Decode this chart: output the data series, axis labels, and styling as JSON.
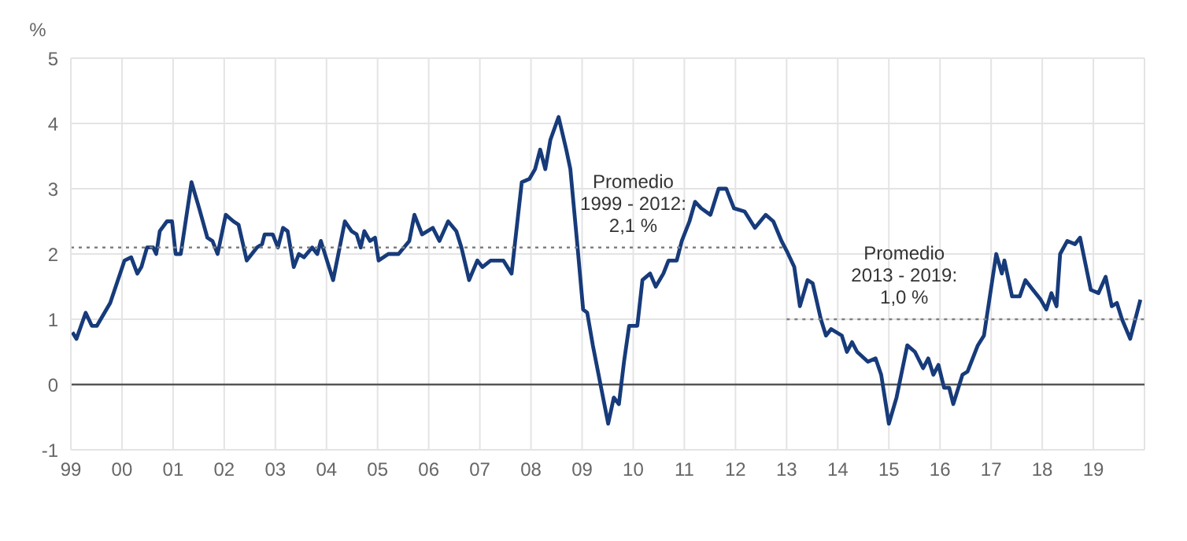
{
  "chart_data": {
    "type": "line",
    "ylabel": "%",
    "xlim": [
      1999,
      2020
    ],
    "xticks": [
      {
        "value": 1999,
        "label": "99"
      },
      {
        "value": 2000,
        "label": "00"
      },
      {
        "value": 2001,
        "label": "01"
      },
      {
        "value": 2002,
        "label": "02"
      },
      {
        "value": 2003,
        "label": "03"
      },
      {
        "value": 2004,
        "label": "04"
      },
      {
        "value": 2005,
        "label": "05"
      },
      {
        "value": 2006,
        "label": "06"
      },
      {
        "value": 2007,
        "label": "07"
      },
      {
        "value": 2008,
        "label": "08"
      },
      {
        "value": 2009,
        "label": "09"
      },
      {
        "value": 2010,
        "label": "10"
      },
      {
        "value": 2011,
        "label": "11"
      },
      {
        "value": 2012,
        "label": "12"
      },
      {
        "value": 2013,
        "label": "13"
      },
      {
        "value": 2014,
        "label": "14"
      },
      {
        "value": 2015,
        "label": "15"
      },
      {
        "value": 2016,
        "label": "16"
      },
      {
        "value": 2017,
        "label": "17"
      },
      {
        "value": 2018,
        "label": "18"
      },
      {
        "value": 2019,
        "label": "19"
      },
      {
        "value": 2020,
        "label": null
      }
    ],
    "ylim": [
      -1,
      5
    ],
    "yticks": [
      -1,
      0,
      1,
      2,
      3,
      4,
      5
    ],
    "grid": true,
    "series": [
      {
        "color": "#173b7a",
        "line_style": "solid",
        "x": [
          1999.03,
          1999.11,
          1999.29,
          1999.41,
          1999.51,
          1999.77,
          2000.05,
          2000.18,
          2000.3,
          2000.38,
          2000.49,
          2000.61,
          2000.67,
          2000.74,
          2000.88,
          2000.98,
          2001.05,
          2001.15,
          2001.36,
          2001.51,
          2001.67,
          2001.77,
          2001.87,
          2002.03,
          2002.18,
          2002.28,
          2002.44,
          2002.54,
          2002.64,
          2002.74,
          2002.79,
          2002.95,
          2003.05,
          2003.15,
          2003.24,
          2003.36,
          2003.46,
          2003.56,
          2003.72,
          2003.82,
          2003.89,
          2004.13,
          2004.36,
          2004.49,
          2004.59,
          2004.67,
          2004.74,
          2004.85,
          2004.95,
          2005.02,
          2005.21,
          2005.41,
          2005.62,
          2005.72,
          2005.87,
          2006.08,
          2006.21,
          2006.38,
          2006.54,
          2006.64,
          2006.79,
          2006.95,
          2007.05,
          2007.21,
          2007.46,
          2007.62,
          2007.82,
          2007.97,
          2008.08,
          2008.18,
          2008.28,
          2008.38,
          2008.54,
          2008.69,
          2008.77,
          2008.9,
          2009.02,
          2009.1,
          2009.21,
          2009.36,
          2009.51,
          2009.62,
          2009.72,
          2009.82,
          2009.92,
          2010.08,
          2010.18,
          2010.33,
          2010.44,
          2010.59,
          2010.69,
          2010.85,
          2010.95,
          2011.1,
          2011.21,
          2011.33,
          2011.51,
          2011.67,
          2011.82,
          2011.97,
          2012.18,
          2012.38,
          2012.59,
          2012.74,
          2012.9,
          2013.0,
          2013.15,
          2013.26,
          2013.41,
          2013.51,
          2013.67,
          2013.77,
          2013.87,
          2014.08,
          2014.18,
          2014.28,
          2014.38,
          2014.59,
          2014.74,
          2014.85,
          2015.0,
          2015.15,
          2015.36,
          2015.51,
          2015.67,
          2015.77,
          2015.87,
          2015.97,
          2016.08,
          2016.18,
          2016.26,
          2016.44,
          2016.54,
          2016.74,
          2016.86,
          2017.1,
          2017.21,
          2017.26,
          2017.41,
          2017.56,
          2017.67,
          2017.82,
          2017.97,
          2018.08,
          2018.18,
          2018.28,
          2018.35,
          2018.49,
          2018.64,
          2018.74,
          2018.95,
          2019.1,
          2019.24,
          2019.36,
          2019.46,
          2019.56,
          2019.72,
          2019.92
        ],
        "values": [
          0.8,
          0.7,
          1.1,
          0.9,
          0.9,
          1.25,
          1.9,
          1.95,
          1.7,
          1.8,
          2.1,
          2.1,
          2.0,
          2.35,
          2.5,
          2.5,
          2.0,
          2.0,
          3.1,
          2.7,
          2.25,
          2.2,
          2.0,
          2.6,
          2.5,
          2.45,
          1.9,
          2.0,
          2.1,
          2.15,
          2.3,
          2.3,
          2.1,
          2.4,
          2.35,
          1.8,
          2.0,
          1.95,
          2.1,
          2.0,
          2.2,
          1.6,
          2.5,
          2.35,
          2.3,
          2.1,
          2.35,
          2.2,
          2.25,
          1.9,
          2.0,
          2.0,
          2.2,
          2.6,
          2.3,
          2.4,
          2.2,
          2.5,
          2.35,
          2.1,
          1.6,
          1.9,
          1.8,
          1.9,
          1.9,
          1.7,
          3.1,
          3.15,
          3.3,
          3.6,
          3.3,
          3.75,
          4.1,
          3.6,
          3.3,
          2.2,
          1.15,
          1.1,
          0.6,
          0.0,
          -0.6,
          -0.2,
          -0.3,
          0.35,
          0.9,
          0.9,
          1.6,
          1.7,
          1.5,
          1.7,
          1.9,
          1.9,
          2.2,
          2.5,
          2.8,
          2.7,
          2.6,
          3.0,
          3.0,
          2.7,
          2.65,
          2.4,
          2.6,
          2.5,
          2.2,
          2.05,
          1.8,
          1.2,
          1.6,
          1.55,
          1.0,
          0.75,
          0.85,
          0.75,
          0.5,
          0.65,
          0.5,
          0.35,
          0.4,
          0.15,
          -0.6,
          -0.2,
          0.6,
          0.5,
          0.25,
          0.4,
          0.15,
          0.3,
          -0.05,
          -0.05,
          -0.3,
          0.15,
          0.2,
          0.6,
          0.75,
          2.0,
          1.7,
          1.9,
          1.35,
          1.35,
          1.6,
          1.45,
          1.3,
          1.15,
          1.4,
          1.2,
          2.0,
          2.2,
          2.15,
          2.25,
          1.45,
          1.4,
          1.65,
          1.2,
          1.25,
          1.0,
          0.7,
          1.3
        ]
      },
      {
        "type": "line",
        "color": "#808080",
        "line_style": "dotted",
        "x": [
          1999,
          2013
        ],
        "values": [
          2.1,
          2.1
        ]
      },
      {
        "type": "line",
        "color": "#808080",
        "line_style": "dotted",
        "x": [
          2013,
          2020
        ],
        "values": [
          1.0,
          1.0
        ]
      }
    ],
    "ref_lines": [
      {
        "axis": "y",
        "value": 0,
        "color": "#555555",
        "line_style": "solid"
      }
    ],
    "annotations": [
      {
        "text": "Promedio\n1999 - 2012:\n2,1 %",
        "x": 2010,
        "y": 2.1
      },
      {
        "text": "Promedio\n2013 - 2019:\n1,0 %",
        "x": 2015.3,
        "y": 1.0
      }
    ]
  }
}
